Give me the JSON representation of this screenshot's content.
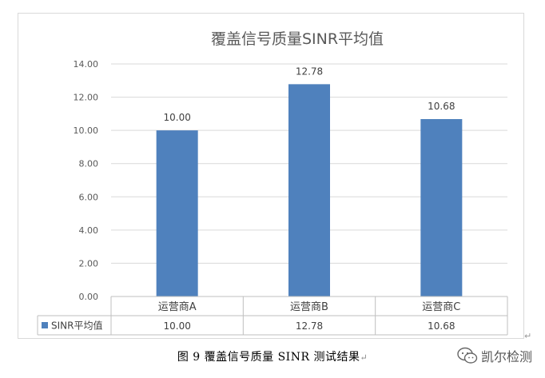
{
  "chart_data": {
    "type": "bar",
    "title": "覆盖信号质量SINR平均值",
    "categories": [
      "运营商A",
      "运营商B",
      "运营商C"
    ],
    "series": [
      {
        "name": "SINR平均值",
        "values": [
          10.0,
          12.78,
          10.68
        ],
        "color": "#4f81bd"
      }
    ],
    "data_labels": [
      "10.00",
      "12.78",
      "10.68"
    ],
    "ylim": [
      0,
      14
    ],
    "yticks": [
      "0.00",
      "2.00",
      "4.00",
      "6.00",
      "8.00",
      "10.00",
      "12.00",
      "14.00"
    ],
    "grid": true,
    "legend": "data-table-left",
    "data_table": true
  },
  "caption": {
    "text": "图 9  覆盖信号质量 SINR 测试结果",
    "paragraph_mark": "↵"
  },
  "corner_mark": "↵",
  "watermark": {
    "text": "凯尔检测",
    "icon": "wechat-icon"
  }
}
